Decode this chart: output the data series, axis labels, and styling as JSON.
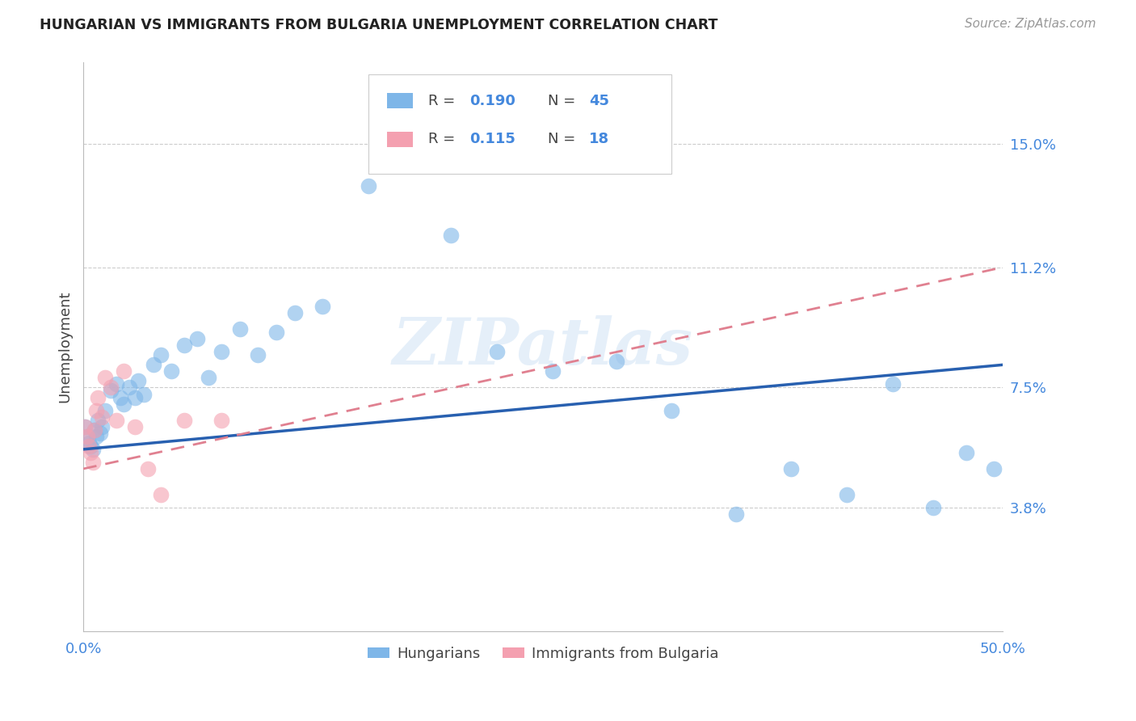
{
  "title": "HUNGARIAN VS IMMIGRANTS FROM BULGARIA UNEMPLOYMENT CORRELATION CHART",
  "source": "Source: ZipAtlas.com",
  "ylabel": "Unemployment",
  "ytick_labels": [
    "15.0%",
    "11.2%",
    "7.5%",
    "3.8%"
  ],
  "ytick_values": [
    0.15,
    0.112,
    0.075,
    0.038
  ],
  "xlim": [
    0.0,
    0.5
  ],
  "ylim": [
    0.0,
    0.175
  ],
  "legend_label1": "Hungarians",
  "legend_label2": "Immigrants from Bulgaria",
  "blue_color": "#7EB6E8",
  "pink_color": "#F4A0B0",
  "line_blue": "#2860B0",
  "line_pink": "#E08090",
  "watermark": "ZIPatlas",
  "hun_x": [
    0.001,
    0.002,
    0.003,
    0.004,
    0.005,
    0.006,
    0.007,
    0.008,
    0.009,
    0.01,
    0.012,
    0.015,
    0.018,
    0.02,
    0.022,
    0.025,
    0.028,
    0.03,
    0.033,
    0.038,
    0.042,
    0.048,
    0.055,
    0.062,
    0.068,
    0.075,
    0.085,
    0.095,
    0.105,
    0.115,
    0.13,
    0.155,
    0.175,
    0.2,
    0.225,
    0.255,
    0.29,
    0.32,
    0.355,
    0.385,
    0.415,
    0.44,
    0.462,
    0.48,
    0.495
  ],
  "hun_y": [
    0.063,
    0.06,
    0.058,
    0.057,
    0.056,
    0.062,
    0.06,
    0.065,
    0.061,
    0.063,
    0.068,
    0.074,
    0.076,
    0.072,
    0.07,
    0.075,
    0.072,
    0.077,
    0.073,
    0.082,
    0.085,
    0.08,
    0.088,
    0.09,
    0.078,
    0.086,
    0.093,
    0.085,
    0.092,
    0.098,
    0.1,
    0.137,
    0.152,
    0.122,
    0.086,
    0.08,
    0.083,
    0.068,
    0.036,
    0.05,
    0.042,
    0.076,
    0.038,
    0.055,
    0.05
  ],
  "bul_x": [
    0.001,
    0.002,
    0.003,
    0.004,
    0.005,
    0.006,
    0.007,
    0.008,
    0.01,
    0.012,
    0.015,
    0.018,
    0.022,
    0.028,
    0.035,
    0.042,
    0.055,
    0.075
  ],
  "bul_y": [
    0.063,
    0.06,
    0.057,
    0.055,
    0.052,
    0.062,
    0.068,
    0.072,
    0.066,
    0.078,
    0.075,
    0.065,
    0.08,
    0.063,
    0.05,
    0.042,
    0.065,
    0.065
  ],
  "blue_line_x": [
    0.0,
    0.5
  ],
  "blue_line_y": [
    0.056,
    0.082
  ],
  "pink_line_x": [
    0.0,
    0.5
  ],
  "pink_line_y": [
    0.05,
    0.112
  ]
}
